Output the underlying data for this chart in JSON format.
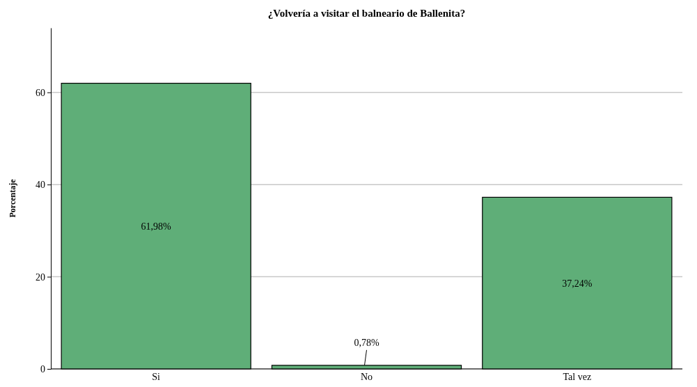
{
  "chart_data": {
    "type": "bar",
    "title": "¿Volvería a visitar el balneario de Ballenita?",
    "ylabel": "Porcentaje",
    "categories": [
      "Si",
      "No",
      "Tal vez"
    ],
    "values": [
      61.98,
      0.78,
      37.24
    ],
    "value_labels": [
      "61,98%",
      "0,78%",
      "37,24%"
    ],
    "color": "#5fae78",
    "ylim": [
      0,
      74
    ],
    "yticks": [
      0,
      20,
      40,
      60
    ],
    "grid": "y"
  }
}
